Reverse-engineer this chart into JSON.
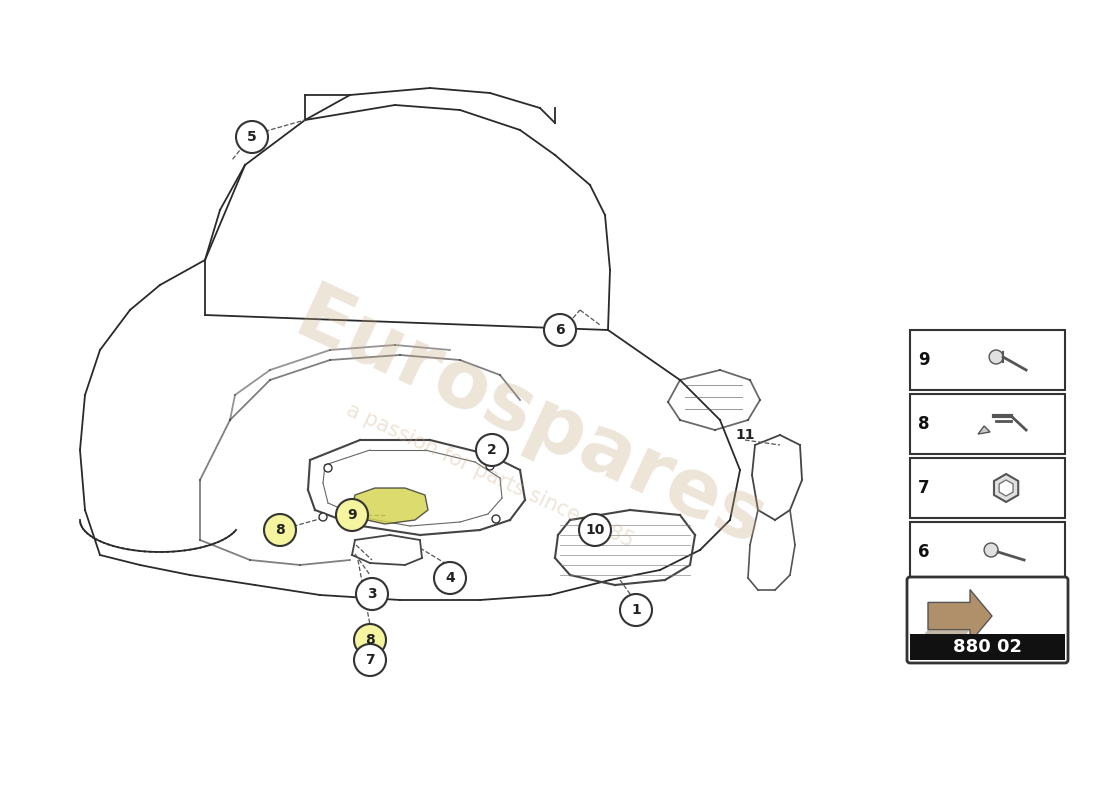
{
  "bg_color": "#ffffff",
  "line_color": "#333333",
  "dashed_color": "#555555",
  "watermark_text": "Eurospares",
  "watermark_sub": "a passion for parts since 1985",
  "watermark_color": "#c8a882",
  "reference_code": "880 02",
  "panel_items": [
    "9",
    "8",
    "7",
    "6"
  ]
}
